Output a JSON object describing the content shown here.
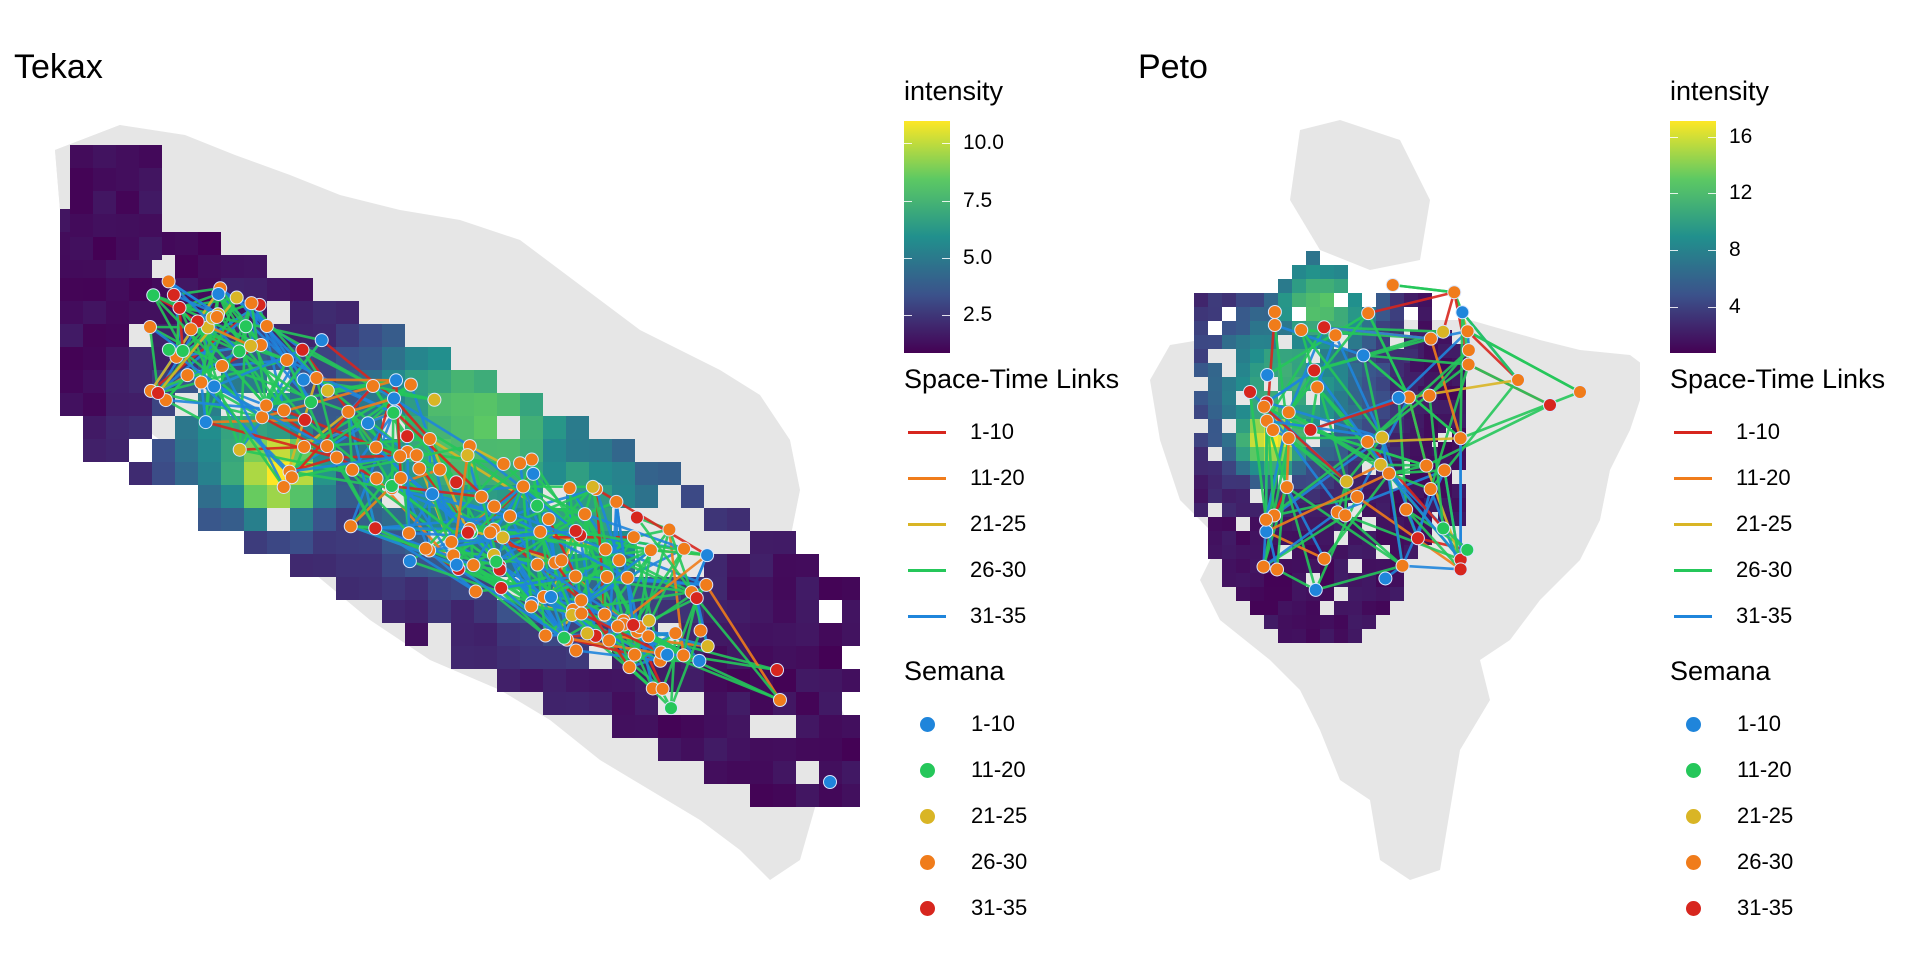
{
  "panels": {
    "left": {
      "title": "Tekax",
      "intensity": {
        "title": "intensity",
        "ticks": [
          "10.0",
          "7.5",
          "5.0",
          "2.5"
        ]
      },
      "links": {
        "title": "Space-Time Links",
        "items": [
          {
            "label": "1-10",
            "color": "#d7261e"
          },
          {
            "label": "11-20",
            "color": "#f07c1b"
          },
          {
            "label": "21-25",
            "color": "#d9b525"
          },
          {
            "label": "26-30",
            "color": "#25c75a"
          },
          {
            "label": "31-35",
            "color": "#1f85db"
          }
        ]
      },
      "semana": {
        "title": "Semana",
        "items": [
          {
            "label": "1-10",
            "color": "#1f85db"
          },
          {
            "label": "11-20",
            "color": "#25c75a"
          },
          {
            "label": "21-25",
            "color": "#d9b525"
          },
          {
            "label": "26-30",
            "color": "#f07c1b"
          },
          {
            "label": "31-35",
            "color": "#d7261e"
          }
        ]
      }
    },
    "right": {
      "title": "Peto",
      "intensity": {
        "title": "intensity",
        "ticks": [
          "16",
          "12",
          "8",
          "4"
        ]
      },
      "links": {
        "title": "Space-Time Links",
        "items": [
          {
            "label": "1-10",
            "color": "#d7261e"
          },
          {
            "label": "11-20",
            "color": "#f07c1b"
          },
          {
            "label": "21-25",
            "color": "#d9b525"
          },
          {
            "label": "26-30",
            "color": "#25c75a"
          },
          {
            "label": "31-35",
            "color": "#1f85db"
          }
        ]
      },
      "semana": {
        "title": "Semana",
        "items": [
          {
            "label": "1-10",
            "color": "#1f85db"
          },
          {
            "label": "11-20",
            "color": "#25c75a"
          },
          {
            "label": "21-25",
            "color": "#d9b525"
          },
          {
            "label": "26-30",
            "color": "#f07c1b"
          },
          {
            "label": "31-35",
            "color": "#d7261e"
          }
        ]
      }
    }
  },
  "colors": {
    "background": "#ffffff",
    "boundary": "#e5e5e5",
    "viridis": [
      "#440154",
      "#3b528b",
      "#21908d",
      "#5dc963",
      "#fde725"
    ]
  }
}
